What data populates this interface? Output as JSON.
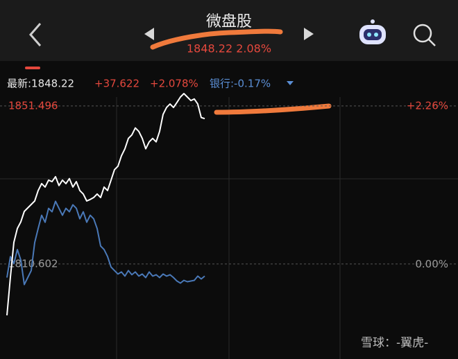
{
  "header": {
    "title": "微盘股",
    "quote": "1848.22 2.08%"
  },
  "info": {
    "latest": "最新:1848.22",
    "change": "+37.622",
    "change_pct": "+2.078%",
    "compare": "银行:-0.17%"
  },
  "watermark": "雪球：-翼虎-",
  "chart_data": {
    "type": "line",
    "xlim": [
      0,
      128
    ],
    "ylim": [
      1796.4,
      1855.6
    ],
    "yticks": [
      1810.602,
      1851.496
    ],
    "ytick_colors": [
      "#9a9a9a",
      "#e5483d"
    ],
    "y2lim": [
      -0.78,
      2.49
    ],
    "y2ticks": [
      {
        "value": 0,
        "label": "0.00%"
      },
      {
        "value": 2.26,
        "label": "+2.26%"
      }
    ],
    "y2tick_colors": [
      "#9a9a9a",
      "#e5483d"
    ],
    "grid": true,
    "series": [
      {
        "color": "#ffffff",
        "values": [
          1797.3,
          1807.2,
          1816.2,
          1819.8,
          1821.5,
          1824.2,
          1825.1,
          1826.0,
          1826.9,
          1829.6,
          1831.4,
          1830.5,
          1832.3,
          1831.9,
          1833.2,
          1830.9,
          1832.3,
          1831.4,
          1832.7,
          1830.5,
          1831.9,
          1829.6,
          1828.7,
          1826.9,
          1827.3,
          1827.8,
          1828.7,
          1827.8,
          1830.5,
          1829.6,
          1832.3,
          1835.0,
          1835.9,
          1838.6,
          1840.4,
          1843.1,
          1844.0,
          1845.8,
          1844.9,
          1843.1,
          1840.4,
          1842.2,
          1843.1,
          1842.2,
          1844.9,
          1849.3,
          1851.1,
          1852.0,
          1851.1,
          1852.4,
          1853.8,
          1854.7,
          1853.8,
          1852.9,
          1853.3,
          1852.0,
          1848.5,
          1848.2
        ]
      },
      {
        "color": "#4a79b8",
        "axis": "y2",
        "values": [
          -0.19,
          0.11,
          0.01,
          0.21,
          0.06,
          -0.29,
          -0.19,
          -0.09,
          0.31,
          0.51,
          0.7,
          0.6,
          0.8,
          0.75,
          0.9,
          0.8,
          0.7,
          0.8,
          0.75,
          0.85,
          0.8,
          0.65,
          0.75,
          0.6,
          0.7,
          0.65,
          0.51,
          0.26,
          0.21,
          0.11,
          -0.04,
          -0.09,
          -0.14,
          -0.11,
          -0.17,
          -0.09,
          -0.15,
          -0.11,
          -0.17,
          -0.14,
          -0.19,
          -0.11,
          -0.17,
          -0.15,
          -0.19,
          -0.14,
          -0.17,
          -0.15,
          -0.19,
          -0.24,
          -0.27,
          -0.23,
          -0.25,
          -0.24,
          -0.23,
          -0.17,
          -0.21,
          -0.17
        ]
      }
    ]
  }
}
